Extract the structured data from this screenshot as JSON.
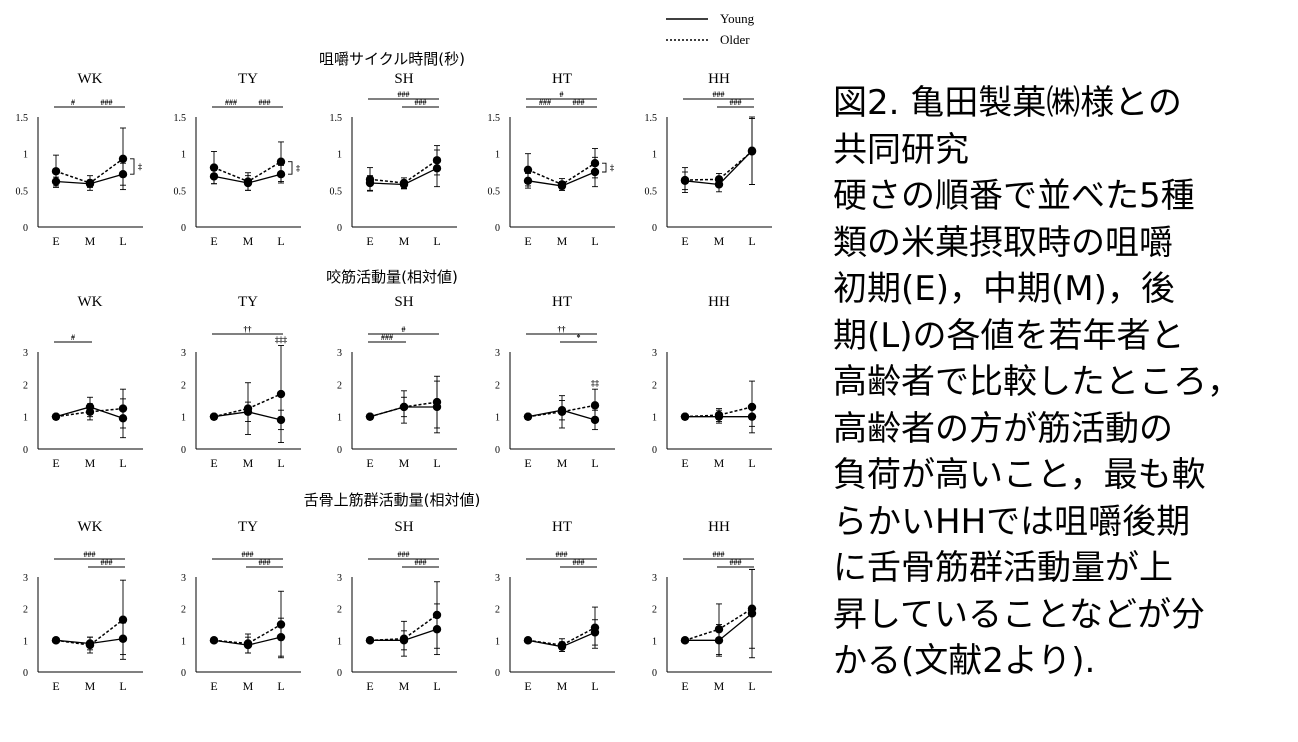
{
  "legend": {
    "young": "Young",
    "older": "Older"
  },
  "caption_lines": [
    "図2. 亀田製菓㈱様との",
    "共同研究",
    "硬さの順番で並べた5種",
    "類の米菓摂取時の咀嚼",
    "初期(E)，中期(M)，後",
    "期(L)の各値を若年者と",
    "高齢者で比較したところ，",
    "高齢者の方が筋活動の",
    "負荷が高いこと，最も軟",
    "らかいHHでは咀嚼後期",
    "に舌骨筋群活動量が上",
    "昇していることなどが分",
    "かる(文献2より)."
  ],
  "chart_data": [
    {
      "type": "line",
      "row_title": "咀嚼サイクル時間(秒)",
      "categories": [
        "E",
        "M",
        "L"
      ],
      "ylim": [
        0,
        1.5
      ],
      "yticks": [
        "0",
        "0.5",
        "1",
        "1.5"
      ],
      "panels": [
        {
          "title": "WK",
          "young": [
            0.62,
            0.59,
            0.72
          ],
          "young_err": [
            0.06,
            0.05,
            0.15
          ],
          "older": [
            0.76,
            0.6,
            0.93
          ],
          "older_err": [
            0.22,
            0.1,
            0.42
          ],
          "sig": [
            {
              "from": 0,
              "to": 1,
              "level": 0,
              "text": "#"
            },
            {
              "from": 1,
              "to": 2,
              "level": 0,
              "text": "###"
            }
          ],
          "side": "‡"
        },
        {
          "title": "TY",
          "young": [
            0.69,
            0.6,
            0.72
          ],
          "young_err": [
            0.1,
            0.1,
            0.12
          ],
          "older": [
            0.81,
            0.62,
            0.89
          ],
          "older_err": [
            0.22,
            0.12,
            0.27
          ],
          "sig": [
            {
              "from": 0,
              "to": 1,
              "level": 0,
              "text": "###"
            },
            {
              "from": 1,
              "to": 2,
              "level": 0,
              "text": "###"
            }
          ],
          "side": "‡"
        },
        {
          "title": "SH",
          "young": [
            0.6,
            0.58,
            0.8
          ],
          "young_err": [
            0.1,
            0.06,
            0.25
          ],
          "older": [
            0.65,
            0.6,
            0.91
          ],
          "older_err": [
            0.16,
            0.07,
            0.2
          ],
          "sig": [
            {
              "from": 0,
              "to": 2,
              "level": 1,
              "text": "###"
            },
            {
              "from": 1,
              "to": 2,
              "level": 0,
              "text": "###"
            }
          ],
          "side": ""
        },
        {
          "title": "HT",
          "young": [
            0.63,
            0.56,
            0.75
          ],
          "young_err": [
            0.1,
            0.06,
            0.2
          ],
          "older": [
            0.78,
            0.58,
            0.87
          ],
          "older_err": [
            0.22,
            0.08,
            0.2
          ],
          "sig": [
            {
              "from": 0,
              "to": 2,
              "level": 1,
              "text": "#"
            },
            {
              "from": 0,
              "to": 1,
              "level": 0,
              "text": "###"
            },
            {
              "from": 1,
              "to": 2,
              "level": 0,
              "text": "###"
            }
          ],
          "side": "‡"
        },
        {
          "title": "HH",
          "young": [
            0.63,
            0.58,
            1.04
          ],
          "young_err": [
            0.12,
            0.1,
            0.46
          ],
          "older": [
            0.64,
            0.65,
            1.03
          ],
          "older_err": [
            0.17,
            0.08,
            0.45
          ],
          "sig": [
            {
              "from": 0,
              "to": 2,
              "level": 1,
              "text": "###"
            },
            {
              "from": 1,
              "to": 2,
              "level": 0,
              "text": "###"
            }
          ],
          "side": ""
        }
      ]
    },
    {
      "type": "line",
      "row_title": "咬筋活動量(相対値)",
      "categories": [
        "E",
        "M",
        "L"
      ],
      "ylim": [
        0,
        3
      ],
      "yticks": [
        "0",
        "1",
        "2",
        "3"
      ],
      "panels": [
        {
          "title": "WK",
          "young": [
            1.0,
            1.3,
            0.95
          ],
          "young_err": [
            0.0,
            0.3,
            0.6
          ],
          "older": [
            1.0,
            1.15,
            1.25
          ],
          "older_err": [
            0.0,
            0.25,
            0.6
          ],
          "sig": [
            {
              "from": 0,
              "to": 1,
              "level": 0,
              "text": "#"
            }
          ],
          "side": ""
        },
        {
          "title": "TY",
          "young": [
            1.0,
            1.15,
            0.9
          ],
          "young_err": [
            0.0,
            0.3,
            0.3
          ],
          "older": [
            1.0,
            1.25,
            1.7
          ],
          "older_err": [
            0.0,
            0.8,
            1.5
          ],
          "sig": [
            {
              "from": 0,
              "to": 2,
              "level": 1,
              "text": "††"
            }
          ],
          "point_mark": {
            "index": 2,
            "text": "‡‡‡"
          },
          "side": ""
        },
        {
          "title": "SH",
          "young": [
            1.0,
            1.3,
            1.3
          ],
          "young_err": [
            0.0,
            0.5,
            0.8
          ],
          "older": [
            1.0,
            1.3,
            1.45
          ],
          "older_err": [
            0.0,
            0.3,
            0.8
          ],
          "sig": [
            {
              "from": 0,
              "to": 2,
              "level": 1,
              "text": "#"
            },
            {
              "from": 0,
              "to": 1,
              "level": 0,
              "text": "###"
            }
          ],
          "side": ""
        },
        {
          "title": "HT",
          "young": [
            1.0,
            1.2,
            0.9
          ],
          "young_err": [
            0.0,
            0.3,
            0.3
          ],
          "older": [
            1.0,
            1.15,
            1.35
          ],
          "older_err": [
            0.0,
            0.5,
            0.5
          ],
          "sig": [
            {
              "from": 0,
              "to": 2,
              "level": 1,
              "text": "††"
            },
            {
              "from": 1,
              "to": 2,
              "level": 0,
              "text": "*"
            }
          ],
          "point_mark": {
            "index": 2,
            "text": "‡‡"
          },
          "side": ""
        },
        {
          "title": "HH",
          "young": [
            1.0,
            1.0,
            1.0
          ],
          "young_err": [
            0.0,
            0.2,
            0.3
          ],
          "older": [
            1.0,
            1.05,
            1.3
          ],
          "older_err": [
            0.0,
            0.2,
            0.8
          ],
          "sig": [],
          "side": ""
        }
      ]
    },
    {
      "type": "line",
      "row_title": "舌骨上筋群活動量(相対値)",
      "categories": [
        "E",
        "M",
        "L"
      ],
      "ylim": [
        0,
        3
      ],
      "yticks": [
        "0",
        "1",
        "2",
        "3"
      ],
      "panels": [
        {
          "title": "WK",
          "young": [
            1.0,
            0.9,
            1.05
          ],
          "young_err": [
            0.0,
            0.2,
            0.5
          ],
          "older": [
            1.0,
            0.85,
            1.65
          ],
          "older_err": [
            0.0,
            0.25,
            1.25
          ],
          "sig": [
            {
              "from": 0,
              "to": 2,
              "level": 1,
              "text": "###"
            },
            {
              "from": 1,
              "to": 2,
              "level": 0,
              "text": "###"
            }
          ],
          "side": ""
        },
        {
          "title": "TY",
          "young": [
            1.0,
            0.85,
            1.1
          ],
          "young_err": [
            0.0,
            0.25,
            0.6
          ],
          "older": [
            1.0,
            0.9,
            1.5
          ],
          "older_err": [
            0.0,
            0.3,
            1.05
          ],
          "sig": [
            {
              "from": 0,
              "to": 2,
              "level": 1,
              "text": "###"
            },
            {
              "from": 1,
              "to": 2,
              "level": 0,
              "text": "###"
            }
          ],
          "side": ""
        },
        {
          "title": "SH",
          "young": [
            1.0,
            1.0,
            1.35
          ],
          "young_err": [
            0.0,
            0.3,
            0.8
          ],
          "older": [
            1.0,
            1.05,
            1.8
          ],
          "older_err": [
            0.0,
            0.55,
            1.05
          ],
          "sig": [
            {
              "from": 0,
              "to": 2,
              "level": 1,
              "text": "###"
            },
            {
              "from": 1,
              "to": 2,
              "level": 0,
              "text": "###"
            }
          ],
          "side": ""
        },
        {
          "title": "HT",
          "young": [
            1.0,
            0.8,
            1.25
          ],
          "young_err": [
            0.0,
            0.15,
            0.4
          ],
          "older": [
            1.0,
            0.85,
            1.4
          ],
          "older_err": [
            0.0,
            0.2,
            0.65
          ],
          "sig": [
            {
              "from": 0,
              "to": 2,
              "level": 1,
              "text": "###"
            },
            {
              "from": 1,
              "to": 2,
              "level": 0,
              "text": "###"
            }
          ],
          "side": ""
        },
        {
          "title": "HH",
          "young": [
            1.0,
            1.0,
            1.85
          ],
          "young_err": [
            0.0,
            0.5,
            1.4
          ],
          "older": [
            1.0,
            1.35,
            2.0
          ],
          "older_err": [
            0.0,
            0.8,
            1.25
          ],
          "sig": [
            {
              "from": 0,
              "to": 2,
              "level": 1,
              "text": "###"
            },
            {
              "from": 1,
              "to": 2,
              "level": 0,
              "text": "###"
            }
          ],
          "side": ""
        }
      ]
    }
  ]
}
